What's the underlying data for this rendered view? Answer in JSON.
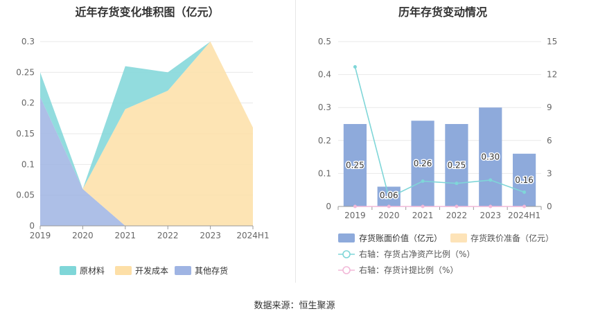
{
  "source": "数据来源：恒生聚源",
  "chart_data": [
    {
      "type": "area",
      "stacked": true,
      "title": "近年存货变化堆积图（亿元）",
      "categories": [
        "2019",
        "2020",
        "2021",
        "2022",
        "2023",
        "2024H1"
      ],
      "ylim": [
        0,
        0.3
      ],
      "yticks": [
        "0",
        "0.05",
        "0.1",
        "0.15",
        "0.2",
        "0.25",
        "0.3"
      ],
      "grid": true,
      "legend_position": "bottom",
      "series": [
        {
          "name": "原材料",
          "color": "#7fd6d8",
          "values": [
            0.04,
            0.0,
            0.07,
            0.03,
            0.0,
            0.0
          ]
        },
        {
          "name": "开发成本",
          "color": "#fddfa7",
          "values": [
            0.0,
            0.0,
            0.19,
            0.22,
            0.3,
            0.16
          ]
        },
        {
          "name": "其他存货",
          "color": "#9fb4e3",
          "values": [
            0.21,
            0.06,
            0.0,
            0.0,
            0.0,
            0.0
          ]
        }
      ]
    },
    {
      "type": "bar",
      "title": "历年存货变动情况",
      "categories": [
        "2019",
        "2020",
        "2021",
        "2022",
        "2023",
        "2024H1"
      ],
      "ylim": [
        0,
        0.5
      ],
      "yticks": [
        "0",
        "0.1",
        "0.2",
        "0.3",
        "0.4",
        "0.5"
      ],
      "y2lim": [
        0,
        15
      ],
      "y2ticks": [
        "0",
        "3",
        "6",
        "9",
        "12",
        "15"
      ],
      "grid": true,
      "legend_position": "bottom",
      "series": [
        {
          "name": "存货账面价值（亿元）",
          "kind": "bar",
          "axis": "left",
          "color": "#8eaadb",
          "values": [
            0.25,
            0.06,
            0.26,
            0.25,
            0.3,
            0.16
          ],
          "labels": [
            "0.25",
            "0.06",
            "0.26",
            "0.25",
            "0.30",
            "0.16"
          ]
        },
        {
          "name": "存货跌价准备（亿元）",
          "kind": "bar",
          "axis": "left",
          "color": "#fde3b8",
          "values": [
            0,
            0,
            0,
            0,
            0,
            0
          ]
        },
        {
          "name": "右轴：存货占净资产比例（%）",
          "kind": "line",
          "axis": "right",
          "color": "#7fd6d8",
          "values": [
            12.7,
            0.8,
            2.3,
            2.1,
            2.4,
            1.3
          ]
        },
        {
          "name": "右轴：存货计提比例（%）",
          "kind": "line",
          "axis": "right",
          "color": "#f2b8d8",
          "values": [
            0,
            0,
            0,
            0,
            0,
            0
          ]
        }
      ]
    }
  ]
}
